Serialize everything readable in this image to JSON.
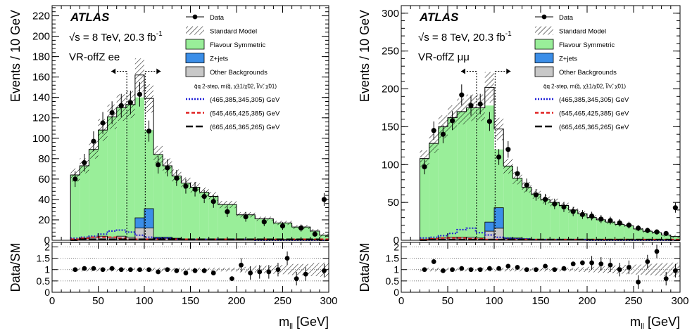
{
  "panels": [
    {
      "experiment": "ATLAS",
      "energy_text": "√s = 8 TeV, 20.3 fb",
      "energy_sup": "-1",
      "region": "VR-offZ ee",
      "ylabel": "Events /  10 GeV",
      "ratio_ylabel": "Data/SM",
      "xlabel": "m",
      "xlabel_sub": "ll",
      "xlabel_unit": " [GeV]",
      "legend": {
        "data": "Data",
        "sm": "Standard Model",
        "fs": "Flavour Symmetric",
        "zjets": "Z+jets",
        "other": "Other Backgrounds",
        "signal_header": "q̄q 2-step, m(q̃, χ̃±1/χ̃02, l̃/ν̃, χ̃01)",
        "sig1": "(465,385,345,305) GeV",
        "sig2": "(545,465,425,385) GeV",
        "sig3": "(665,465,365,265) GeV"
      },
      "x_ticks": [
        "0",
        "50",
        "100",
        "150",
        "200",
        "250",
        "300"
      ],
      "y_ticks": [
        "0",
        "20",
        "40",
        "60",
        "80",
        "100",
        "120",
        "140",
        "160",
        "180",
        "200",
        "220"
      ],
      "ratio_ticks": [
        "0",
        "0.5",
        "1",
        "1.5",
        "2"
      ]
    },
    {
      "experiment": "ATLAS",
      "energy_text": "√s = 8 TeV, 20.3 fb",
      "energy_sup": "-1",
      "region": "VR-offZ μμ",
      "ylabel": "Events /  10 GeV",
      "ratio_ylabel": "Data/SM",
      "xlabel": "m",
      "xlabel_sub": "ll",
      "xlabel_unit": " [GeV]",
      "legend": {
        "data": "Data",
        "sm": "Standard Model",
        "fs": "Flavour Symmetric",
        "zjets": "Z+jets",
        "other": "Other Backgrounds",
        "signal_header": "q̄q 2-step, m(q̃, χ̃±1/χ̃02, l̃/ν̃, χ̃01)",
        "sig1": "(465,385,345,305) GeV",
        "sig2": "(545,465,425,385) GeV",
        "sig3": "(665,465,365,265) GeV"
      },
      "x_ticks": [
        "0",
        "50",
        "100",
        "150",
        "200",
        "250",
        "300"
      ],
      "y_ticks": [
        "0",
        "50",
        "100",
        "150",
        "200",
        "250",
        "300"
      ],
      "ratio_ticks": [
        "0",
        "0.5",
        "1",
        "1.5",
        "2"
      ]
    }
  ],
  "colors": {
    "flavour_symmetric": "#99ee99",
    "zjets": "#3b8ee8",
    "other": "#c8c8c8",
    "sig1": "#1f1fd6",
    "sig2": "#e02020",
    "sig3": "#000000"
  },
  "chart_data": [
    {
      "type": "bar",
      "title": "VR-offZ ee",
      "xlabel": "m_ll [GeV]",
      "ylabel": "Events / 10 GeV",
      "xlim": [
        0,
        300
      ],
      "ylim": [
        0,
        230
      ],
      "ratio_ylim": [
        0,
        2.2
      ],
      "bin_edges": [
        20,
        30,
        40,
        50,
        60,
        70,
        80,
        90,
        100,
        110,
        120,
        130,
        140,
        150,
        160,
        170,
        180,
        200,
        220,
        240,
        260,
        280,
        290,
        300
      ],
      "series": [
        {
          "name": "Flavour Symmetric",
          "values": [
            64,
            73,
            89,
            108,
            121,
            130,
            133,
            140,
            108,
            84,
            73,
            63,
            56,
            52,
            47,
            43,
            35,
            25,
            21,
            17,
            13,
            9,
            5,
            44
          ]
        },
        {
          "name": "Z+jets",
          "values": [
            0,
            0,
            0,
            0,
            0,
            0,
            0,
            10,
            19,
            1,
            1,
            0,
            0,
            0,
            0,
            0,
            0,
            0,
            0,
            0,
            0,
            0,
            0,
            0
          ]
        },
        {
          "name": "Other Backgrounds",
          "values": [
            1,
            2,
            3,
            4,
            3,
            4,
            3,
            12,
            12,
            2,
            2,
            2,
            1,
            1,
            1,
            1,
            1,
            1,
            1,
            1,
            1,
            1,
            0,
            1
          ]
        },
        {
          "name": "Standard Model",
          "values": [
            64,
            73,
            89,
            108,
            121,
            130,
            133,
            162,
            139,
            84,
            73,
            63,
            56,
            52,
            47,
            43,
            35,
            25,
            21,
            17,
            13,
            9,
            5,
            45
          ]
        }
      ],
      "data_points": {
        "x": [
          25,
          35,
          45,
          55,
          65,
          75,
          85,
          95,
          105,
          115,
          125,
          135,
          145,
          155,
          165,
          175,
          190,
          210,
          230,
          250,
          270,
          285,
          295
        ],
        "y": [
          60,
          76,
          97,
          115,
          125,
          132,
          135,
          143,
          107,
          74,
          71,
          61,
          53,
          50,
          43,
          38,
          28,
          23,
          18,
          14,
          12,
          6,
          40
        ]
      },
      "ratio_points": {
        "x": [
          25,
          35,
          45,
          55,
          65,
          75,
          85,
          95,
          105,
          115,
          125,
          135,
          145,
          155,
          165,
          175,
          195,
          205,
          215,
          225,
          235,
          245,
          255,
          265,
          275,
          295
        ],
        "y": [
          1.0,
          1.05,
          1.05,
          1.0,
          1.05,
          1.0,
          1.0,
          1.0,
          1.0,
          0.9,
          1.0,
          0.95,
          0.85,
          0.95,
          0.95,
          0.85,
          0.6,
          1.2,
          0.85,
          0.9,
          0.9,
          1.0,
          1.5,
          0.6,
          0.8,
          0.95
        ]
      },
      "signals": [
        {
          "name": "(465,385,345,305) GeV",
          "x": [
            20,
            30,
            40,
            50,
            60,
            70,
            80,
            90,
            100,
            110,
            120,
            130,
            140,
            150,
            160,
            170,
            180,
            200,
            220,
            240,
            260,
            280,
            290,
            300
          ],
          "y": [
            2,
            3,
            4,
            6,
            9,
            10,
            8,
            5,
            3,
            2,
            2,
            1,
            1,
            1,
            1,
            1,
            1,
            1,
            0,
            0,
            0,
            0,
            0,
            0
          ]
        },
        {
          "name": "(545,465,425,385) GeV",
          "x": [
            20,
            30,
            40,
            50,
            60,
            70,
            80,
            90,
            100,
            110,
            120,
            130,
            140,
            150,
            160,
            170,
            180,
            200,
            220,
            240,
            260,
            280,
            290,
            300
          ],
          "y": [
            1,
            2,
            3,
            3,
            3,
            2,
            1,
            1,
            1,
            1,
            1,
            1,
            1,
            1,
            1,
            1,
            1,
            1,
            1,
            1,
            1,
            1,
            1,
            1
          ]
        },
        {
          "name": "(665,465,365,265) GeV",
          "x": [
            20,
            30,
            40,
            50,
            60,
            70,
            80,
            90,
            100,
            110,
            120,
            130,
            140,
            150,
            160,
            170,
            180,
            200,
            220,
            240,
            260,
            280,
            290,
            300
          ],
          "y": [
            0,
            1,
            1,
            1,
            1,
            1,
            1,
            1,
            1,
            1,
            1,
            1,
            1,
            1,
            1,
            1,
            1,
            1,
            1,
            1,
            1,
            1,
            0,
            0
          ]
        }
      ],
      "region_window": [
        81,
        101
      ]
    },
    {
      "type": "bar",
      "title": "VR-offZ μμ",
      "xlabel": "m_ll [GeV]",
      "ylabel": "Events / 10 GeV",
      "xlim": [
        0,
        300
      ],
      "ylim": [
        0,
        310
      ],
      "ratio_ylim": [
        0,
        2.2
      ],
      "bin_edges": [
        20,
        30,
        40,
        50,
        60,
        70,
        80,
        90,
        100,
        110,
        120,
        130,
        140,
        150,
        160,
        170,
        180,
        190,
        200,
        210,
        220,
        230,
        240,
        250,
        260,
        270,
        280,
        290,
        300
      ],
      "series": [
        {
          "name": "Flavour Symmetric",
          "values": [
            108,
            128,
            150,
            162,
            170,
            175,
            175,
            178,
            120,
            98,
            82,
            70,
            61,
            54,
            50,
            46,
            40,
            35,
            30,
            27,
            24,
            21,
            19,
            15,
            12,
            10,
            7,
            5,
            45
          ]
        },
        {
          "name": "Z+jets",
          "values": [
            0,
            0,
            0,
            0,
            0,
            0,
            0,
            12,
            27,
            1,
            1,
            0,
            0,
            0,
            0,
            0,
            0,
            0,
            0,
            0,
            0,
            0,
            0,
            0,
            0,
            0,
            0,
            0,
            0
          ]
        },
        {
          "name": "Other Backgrounds",
          "values": [
            1,
            2,
            3,
            4,
            4,
            4,
            3,
            12,
            16,
            2,
            2,
            2,
            1,
            1,
            1,
            1,
            1,
            1,
            1,
            1,
            1,
            1,
            1,
            1,
            1,
            1,
            1,
            0,
            1
          ]
        },
        {
          "name": "Standard Model",
          "values": [
            108,
            128,
            150,
            162,
            170,
            175,
            175,
            202,
            147,
            98,
            82,
            70,
            61,
            54,
            50,
            46,
            40,
            35,
            30,
            27,
            24,
            21,
            19,
            15,
            12,
            10,
            7,
            5,
            46
          ]
        }
      ],
      "data_points": {
        "x": [
          25,
          35,
          45,
          55,
          65,
          75,
          85,
          95,
          105,
          115,
          125,
          135,
          145,
          155,
          165,
          175,
          185,
          195,
          205,
          215,
          225,
          235,
          245,
          255,
          265,
          275,
          285,
          295
        ],
        "y": [
          97,
          145,
          140,
          158,
          192,
          178,
          180,
          157,
          110,
          120,
          88,
          73,
          60,
          54,
          48,
          44,
          38,
          34,
          32,
          28,
          26,
          23,
          20,
          16,
          13,
          11,
          9,
          43
        ]
      },
      "ratio_points": {
        "x": [
          25,
          35,
          45,
          55,
          65,
          75,
          85,
          95,
          105,
          115,
          125,
          135,
          145,
          155,
          165,
          175,
          185,
          195,
          205,
          215,
          225,
          235,
          245,
          255,
          265,
          275,
          285,
          295
        ],
        "y": [
          1.0,
          1.35,
          0.95,
          1.0,
          1.05,
          1.0,
          1.0,
          1.05,
          1.05,
          1.15,
          1.1,
          1.0,
          1.0,
          1.15,
          1.0,
          1.05,
          1.25,
          1.3,
          1.3,
          1.25,
          1.2,
          1.0,
          1.1,
          0.45,
          1.35,
          1.8,
          0.6,
          0.95
        ]
      },
      "signals": [
        {
          "name": "(465,385,345,305) GeV",
          "x": [
            20,
            30,
            40,
            50,
            60,
            70,
            80,
            90,
            100,
            110,
            120,
            130,
            140,
            150,
            160,
            170,
            180,
            190,
            200,
            210,
            220,
            230,
            240,
            250,
            260,
            270,
            280,
            290,
            300
          ],
          "y": [
            3,
            4,
            6,
            9,
            14,
            16,
            10,
            7,
            4,
            3,
            2,
            2,
            1,
            1,
            1,
            1,
            1,
            1,
            0,
            0,
            0,
            0,
            0,
            0,
            0,
            0,
            0,
            0,
            0
          ]
        },
        {
          "name": "(545,465,425,385) GeV",
          "x": [
            20,
            30,
            40,
            50,
            60,
            70,
            80,
            90,
            100,
            110,
            120,
            130,
            140,
            150,
            160,
            170,
            180,
            190,
            200,
            210,
            220,
            230,
            240,
            250,
            260,
            270,
            280,
            290,
            300
          ],
          "y": [
            1,
            2,
            3,
            3,
            3,
            2,
            2,
            1,
            1,
            1,
            1,
            1,
            1,
            1,
            1,
            1,
            1,
            1,
            1,
            1,
            1,
            1,
            1,
            1,
            1,
            1,
            1,
            1,
            1
          ]
        },
        {
          "name": "(665,465,365,265) GeV",
          "x": [
            20,
            30,
            40,
            50,
            60,
            70,
            80,
            90,
            100,
            110,
            120,
            130,
            140,
            150,
            160,
            170,
            180,
            190,
            200,
            210,
            220,
            230,
            240,
            250,
            260,
            270,
            280,
            290,
            300
          ],
          "y": [
            0,
            1,
            1,
            1,
            1,
            1,
            1,
            1,
            1,
            1,
            1,
            1,
            1,
            1,
            1,
            1,
            1,
            1,
            1,
            1,
            1,
            1,
            1,
            1,
            1,
            1,
            1,
            0,
            0
          ]
        }
      ],
      "region_window": [
        81,
        101
      ]
    }
  ]
}
